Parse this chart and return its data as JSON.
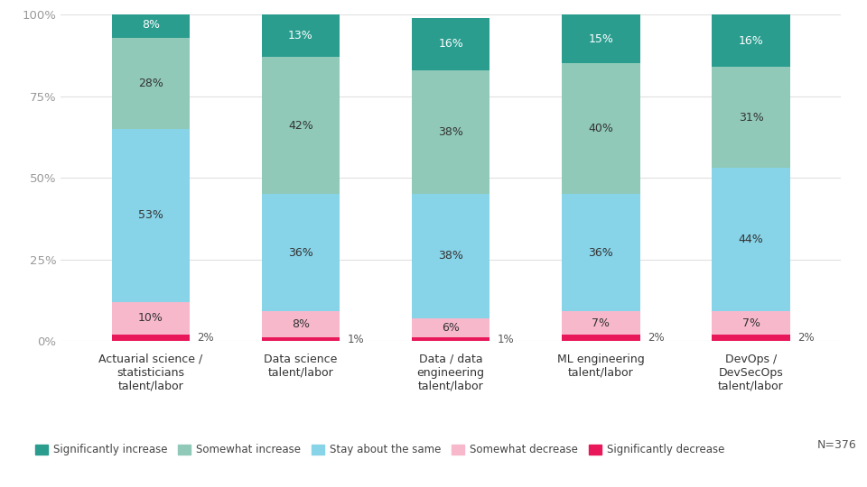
{
  "categories": [
    "Actuarial science /\nstatisticians\ntalent/labor",
    "Data science\ntalent/labor",
    "Data / data\nengineering\ntalent/labor",
    "ML engineering\ntalent/labor",
    "DevOps /\nDevSecOps\ntalent/labor"
  ],
  "series": {
    "Significantly increase": [
      8,
      13,
      16,
      15,
      16
    ],
    "Somewhat increase": [
      28,
      42,
      38,
      40,
      31
    ],
    "Stay about the same": [
      53,
      36,
      38,
      36,
      44
    ],
    "Somewhat decrease": [
      10,
      8,
      6,
      7,
      7
    ],
    "Significantly decrease": [
      2,
      1,
      1,
      2,
      2
    ]
  },
  "colors": {
    "Significantly increase": "#2a9d8f",
    "Somewhat increase": "#90c9b8",
    "Stay about the same": "#87d3e8",
    "Somewhat decrease": "#f7b8cc",
    "Significantly decrease": "#e8185a"
  },
  "order": [
    "Significantly decrease",
    "Somewhat decrease",
    "Stay about the same",
    "Somewhat increase",
    "Significantly increase"
  ],
  "ylim": [
    0,
    100
  ],
  "yticks": [
    0,
    25,
    50,
    75,
    100
  ],
  "ytick_labels": [
    "0%",
    "25%",
    "50%",
    "75%",
    "100%"
  ],
  "background_color": "#ffffff",
  "bar_width": 0.52,
  "note": "N=376"
}
